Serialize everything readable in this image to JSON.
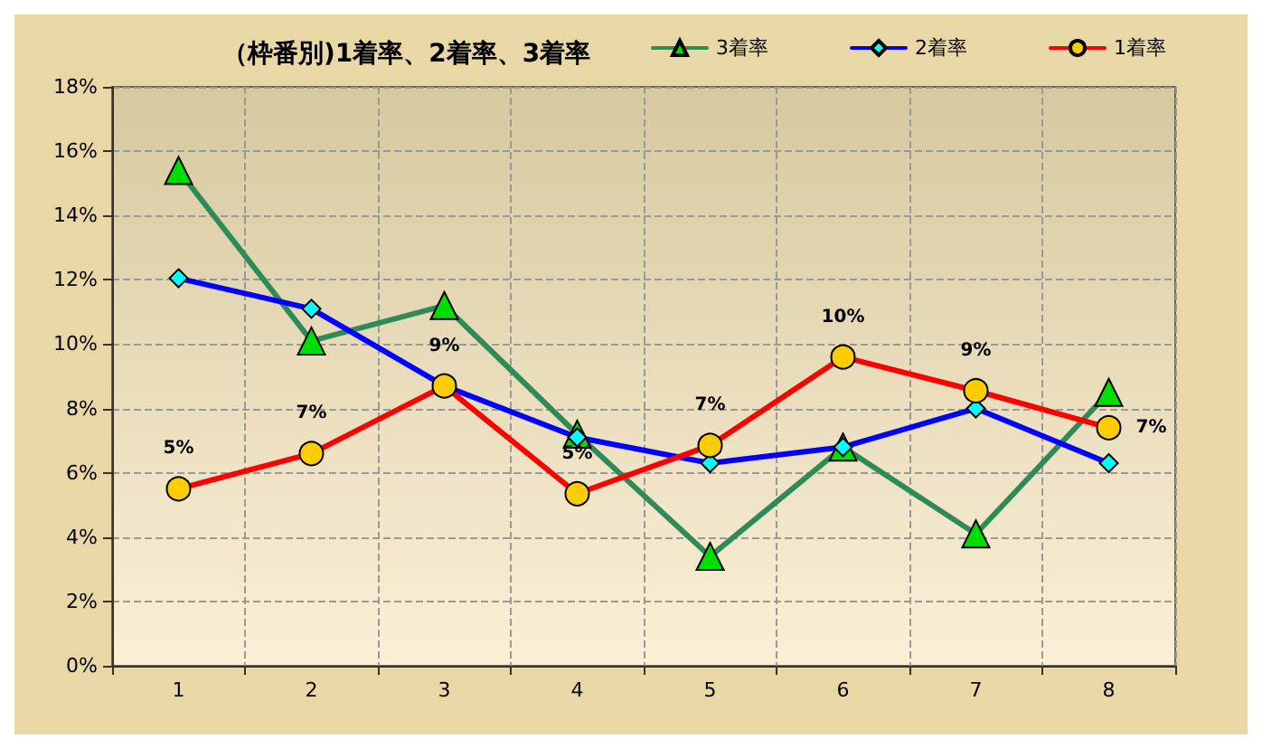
{
  "chart_data": {
    "type": "line",
    "title": "（枠番別)1着率、2着率、3着率",
    "categories": [
      "1",
      "2",
      "3",
      "4",
      "5",
      "6",
      "7",
      "8"
    ],
    "ylim": [
      0,
      18
    ],
    "yticks": [
      {
        "value": 0,
        "label": "0%"
      },
      {
        "value": 2,
        "label": "2%"
      },
      {
        "value": 4,
        "label": "4%"
      },
      {
        "value": 6,
        "label": "6%"
      },
      {
        "value": 8,
        "label": "8%"
      },
      {
        "value": 10,
        "label": "10%"
      },
      {
        "value": 12,
        "label": "12%"
      },
      {
        "value": 14,
        "label": "14%"
      },
      {
        "value": 16,
        "label": "16%"
      },
      {
        "value": 18,
        "label": "18%"
      }
    ],
    "grid": true,
    "legend": "top right",
    "series": [
      {
        "name": "3着率",
        "color": "#2e8b57",
        "marker": "triangle",
        "values": [
          15.4,
          10.1,
          11.2,
          7.2,
          3.4,
          6.8,
          4.1,
          8.5
        ]
      },
      {
        "name": "2着率",
        "color": "#0000ff",
        "marker": "diamond",
        "values": [
          12.05,
          11.1,
          8.7,
          7.1,
          6.3,
          6.8,
          8.0,
          6.3
        ]
      },
      {
        "name": "1着率",
        "color": "#ff0000",
        "marker": "circle",
        "values": [
          5.5,
          6.6,
          8.7,
          5.35,
          6.85,
          9.6,
          8.55,
          7.4
        ],
        "value_labels": [
          "5%",
          "7%",
          "9%",
          "5%",
          "7%",
          "10%",
          "9%",
          "7%"
        ]
      }
    ]
  }
}
